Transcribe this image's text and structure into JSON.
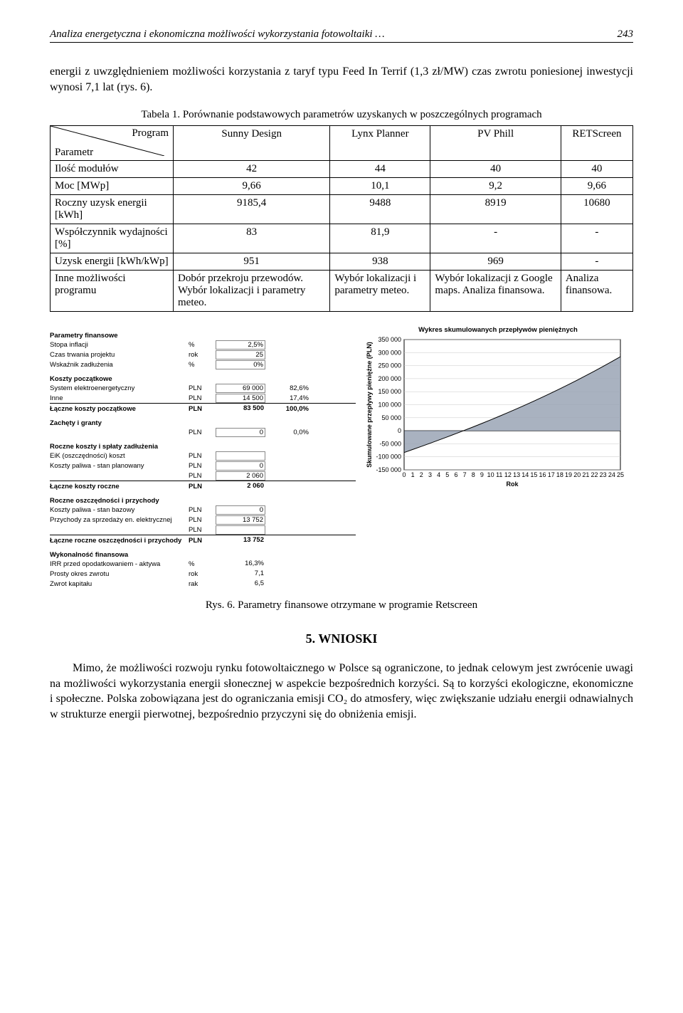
{
  "header": {
    "title": "Analiza energetyczna i ekonomiczna możliwości wykorzystania fotowoltaiki …",
    "page": "243"
  },
  "intro": "energii z uwzględnieniem możliwości korzystania z taryf typu Feed In Terrif (1,3 zł/MW) czas zwrotu poniesionej inwestycji wynosi 7,1 lat (rys. 6).",
  "table": {
    "caption": "Tabela 1. Porównanie podstawowych parametrów uzyskanych w poszczególnych programach",
    "corner_top": "Program",
    "corner_bottom": "Parametr",
    "programs": [
      "Sunny Design",
      "Lynx Planner",
      "PV Phill",
      "RETScreen"
    ],
    "rows": [
      {
        "label": "Ilość modułów",
        "vals": [
          "42",
          "44",
          "40",
          "40"
        ]
      },
      {
        "label": "Moc [MWp]",
        "vals": [
          "9,66",
          "10,1",
          "9,2",
          "9,66"
        ]
      },
      {
        "label": "Roczny uzysk energii [kWh]",
        "vals": [
          "9185,4",
          "9488",
          "8919",
          "10680"
        ]
      },
      {
        "label": "Współczynnik wydajności [%]",
        "vals": [
          "83",
          "81,9",
          "-",
          "-"
        ]
      },
      {
        "label": "Uzysk energii [kWh/kWp]",
        "vals": [
          "951",
          "938",
          "969",
          "-"
        ]
      },
      {
        "label": "Inne możliwości programu",
        "vals": [
          "Dobór przekroju przewodów. Wybór lokalizacji i parametry meteo.",
          "Wybór lokalizacji i parametry meteo.",
          "Wybór lokalizacji z Google maps. Analiza finansowa.",
          "Analiza finansowa."
        ]
      }
    ]
  },
  "retscreen": {
    "groups": [
      {
        "title": "Parametry finansowe",
        "rows": [
          {
            "label": "Stopa inflacji",
            "unit": "%",
            "val": "2,5%"
          },
          {
            "label": "Czas trwania projektu",
            "unit": "rok",
            "val": "25"
          },
          {
            "label": "Wskaźnik zadłużenia",
            "unit": "%",
            "val": "0%"
          }
        ]
      },
      {
        "title": "Koszty początkowe",
        "rows": [
          {
            "label": "System elektroenergetyczny",
            "unit": "PLN",
            "val": "69 000",
            "pct": "82,6%"
          },
          {
            "label": "Inne",
            "unit": "PLN",
            "val": "14 500",
            "pct": "17,4%"
          }
        ],
        "total": {
          "label": "Łączne koszty początkowe",
          "unit": "PLN",
          "val": "83 500",
          "pct": "100,0%"
        }
      },
      {
        "title": "Zachęty i granty",
        "rows": [
          {
            "label": "",
            "unit": "PLN",
            "val": "0",
            "pct": "0,0%"
          }
        ]
      },
      {
        "title": "Roczne koszty i spłaty zadłużenia",
        "rows": [
          {
            "label": "EiK (oszczędności) koszt",
            "unit": "PLN",
            "val": ""
          },
          {
            "label": "Koszty paliwa - stan planowany",
            "unit": "PLN",
            "val": "0"
          },
          {
            "label": "",
            "unit": "PLN",
            "val": "2 060"
          }
        ],
        "total": {
          "label": "Łączne koszty roczne",
          "unit": "PLN",
          "val": "2 060"
        }
      },
      {
        "title": "Roczne oszczędności i przychody",
        "rows": [
          {
            "label": "Koszty paliwa - stan bazowy",
            "unit": "PLN",
            "val": "0"
          },
          {
            "label": "Przychody za sprzedaży en. elektrycznej",
            "unit": "PLN",
            "val": "13 752"
          },
          {
            "label": "",
            "unit": "PLN",
            "val": ""
          }
        ],
        "total": {
          "label": "Łączne roczne oszczędności i przychody",
          "unit": "PLN",
          "val": "13 752"
        }
      },
      {
        "title": "Wykonalność finansowa",
        "rows": [
          {
            "label": "IRR przed opodatkowaniem - aktywa",
            "unit": "%",
            "val": "16,3%",
            "plain": true
          },
          {
            "label": "Prosty okres zwrotu",
            "unit": "rok",
            "val": "7,1",
            "plain": true
          },
          {
            "label": "Zwrot kapitału",
            "unit": "rak",
            "val": "6,5",
            "plain": true
          }
        ]
      }
    ],
    "chart": {
      "title": "Wykres skumulowanych przepływów pieniężnych",
      "ylabel": "Skumulowane przepływy pieniężne (PLN)",
      "xlabel": "Rok",
      "ylim": [
        -150000,
        350000
      ],
      "ytick_step": 50000,
      "xlim": [
        0,
        25
      ],
      "xtick_step": 1,
      "series": [
        -83500,
        -71800,
        -60000,
        -48000,
        -35800,
        -23400,
        -10800,
        2000,
        15000,
        28300,
        41800,
        55600,
        69700,
        84100,
        98800,
        113800,
        129200,
        144900,
        161000,
        177400,
        194200,
        211400,
        229000,
        247000,
        265400,
        284300
      ],
      "fill_color": "#9aa5b5",
      "line_color": "#000000",
      "grid_color": "#c8c8c8",
      "background_color": "#ffffff",
      "axis_color": "#000000"
    }
  },
  "fig_caption": "Rys. 6. Parametry finansowe otrzymane w programie Retscreen",
  "section": "5. WNIOSKI",
  "body": "Mimo, że możliwości rozwoju rynku fotowoltaicznego w Polsce są ograniczone, to jednak celowym jest zwrócenie uwagi na możliwości wykorzystania energii słonecznej w aspekcie bezpośrednich korzyści. Są to korzyści ekologiczne, ekonomiczne i społeczne. Polska zobowiązana jest do ograniczania emisji CO₂ do atmosfery, więc zwiększanie udziału energii odnawialnych w strukturze energii pierwotnej, bezpośrednio przyczyni się do obniżenia emisji."
}
